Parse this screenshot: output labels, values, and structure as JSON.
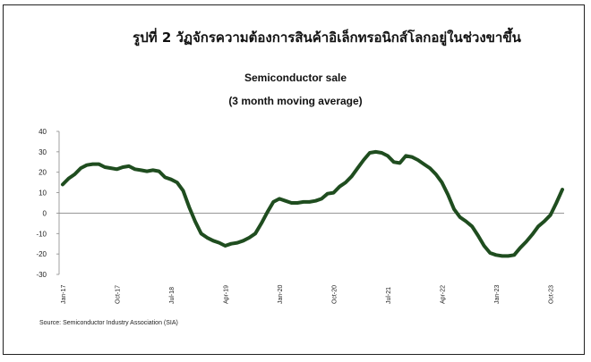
{
  "title": "รูปที่ 2 วัฏจักรความต้องการสินค้าอิเล็กทรอนิกส์โลกอยู่ในช่วงขาขึ้น",
  "subtitle": "Semiconductor sale",
  "subtitle2": "(3 month moving average)",
  "source": "Source: Semiconductor Industry Association (SIA)",
  "chart_data": {
    "type": "line",
    "ylim": [
      -30,
      40
    ],
    "yticks": [
      40,
      30,
      20,
      10,
      0,
      -10,
      -20,
      -30
    ],
    "xtick_labels": [
      "Jan-17",
      "Oct-17",
      "Jul-18",
      "Apr-19",
      "Jan-20",
      "Oct-20",
      "Jul-21",
      "Apr-22",
      "Jan-23",
      "Oct-23"
    ],
    "grid": false,
    "line_color": "#1f4d1f",
    "series": [
      {
        "x": [
          "Jan-17",
          "Feb-17",
          "Mar-17",
          "Apr-17",
          "May-17",
          "Jun-17",
          "Jul-17",
          "Aug-17",
          "Sep-17",
          "Oct-17",
          "Nov-17",
          "Dec-17",
          "Jan-18",
          "Feb-18",
          "Mar-18",
          "Apr-18",
          "May-18",
          "Jun-18",
          "Jul-18",
          "Aug-18",
          "Sep-18",
          "Oct-18",
          "Nov-18",
          "Dec-18",
          "Jan-19",
          "Feb-19",
          "Mar-19",
          "Apr-19",
          "May-19",
          "Jun-19",
          "Jul-19",
          "Aug-19",
          "Sep-19",
          "Oct-19",
          "Nov-19",
          "Dec-19",
          "Jan-20",
          "Feb-20",
          "Mar-20",
          "Apr-20",
          "May-20",
          "Jun-20",
          "Jul-20",
          "Aug-20",
          "Sep-20",
          "Oct-20",
          "Nov-20",
          "Dec-20",
          "Jan-21",
          "Feb-21",
          "Mar-21",
          "Apr-21",
          "May-21",
          "Jun-21",
          "Jul-21",
          "Aug-21",
          "Sep-21",
          "Oct-21",
          "Nov-21",
          "Dec-21",
          "Jan-22",
          "Feb-22",
          "Mar-22",
          "Apr-22",
          "May-22",
          "Jun-22",
          "Jul-22",
          "Aug-22",
          "Sep-22",
          "Oct-22",
          "Nov-22",
          "Dec-22",
          "Jan-23",
          "Feb-23",
          "Mar-23",
          "Apr-23",
          "May-23",
          "Jun-23",
          "Jul-23",
          "Aug-23",
          "Sep-23",
          "Oct-23",
          "Nov-23",
          "Dec-23"
        ],
        "values": [
          14,
          17,
          19,
          22,
          23.5,
          24,
          24,
          22.5,
          22,
          21.5,
          22.5,
          23,
          21.5,
          21,
          20.5,
          21,
          20.5,
          17.5,
          16.5,
          15,
          11,
          3,
          -4,
          -10,
          -12,
          -13.5,
          -14.5,
          -16,
          -15,
          -14.5,
          -13.5,
          -12,
          -10,
          -5,
          0.5,
          5.5,
          7,
          6,
          5,
          5,
          5.5,
          5.5,
          6,
          7,
          9.5,
          10,
          13,
          15,
          18,
          22,
          26,
          29.5,
          30,
          29.5,
          28,
          25,
          24.5,
          28,
          27.5,
          26,
          24,
          22,
          19,
          15,
          9,
          2,
          -2,
          -4,
          -6.5,
          -11,
          -16,
          -19.5,
          -20.5,
          -21,
          -21,
          -20.5,
          -17,
          -14,
          -10.5,
          -6.5,
          -4,
          -1,
          5,
          11.5
        ]
      }
    ]
  }
}
